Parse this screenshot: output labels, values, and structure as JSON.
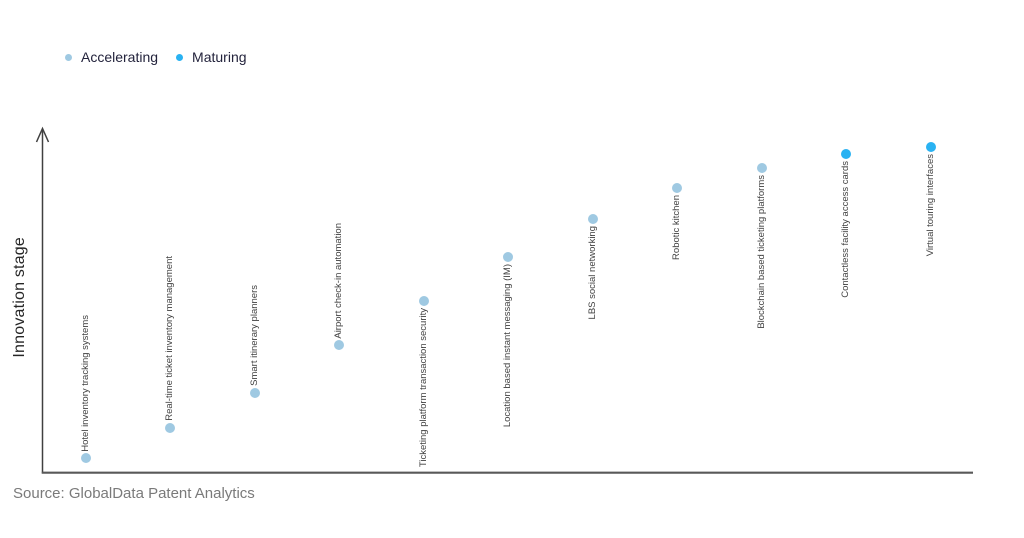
{
  "chart_data": {
    "type": "scatter",
    "title": "",
    "xlabel": "",
    "ylabel": "Innovation stage",
    "grid": false,
    "legend_position": "top-left",
    "y_axis": {
      "has_numeric_ticks": false,
      "arrow": true,
      "range_note": "qualitative innovation stage, low to high"
    },
    "legend": [
      {
        "name": "Accelerating",
        "color": "#9fc9e2"
      },
      {
        "name": "Maturing",
        "color": "#29b2f2"
      }
    ],
    "points": [
      {
        "label": "Hotel inventory tracking systems",
        "series": "Accelerating",
        "stage_score": 0.04
      },
      {
        "label": "Real-time ticket inventory management",
        "series": "Accelerating",
        "stage_score": 0.13
      },
      {
        "label": "Smart itinerary planners",
        "series": "Accelerating",
        "stage_score": 0.23
      },
      {
        "label": "Airport check-in automation",
        "series": "Accelerating",
        "stage_score": 0.37
      },
      {
        "label": "Ticketing platform transaction security",
        "series": "Accelerating",
        "stage_score": 0.5
      },
      {
        "label": "Location based instant messaging (IM)",
        "series": "Accelerating",
        "stage_score": 0.63
      },
      {
        "label": "LBS social networking",
        "series": "Accelerating",
        "stage_score": 0.74
      },
      {
        "label": "Robotic kitchen",
        "series": "Accelerating",
        "stage_score": 0.83
      },
      {
        "label": "Blockchain based ticketing platforms",
        "series": "Accelerating",
        "stage_score": 0.89
      },
      {
        "label": "Contactless facility access cards",
        "series": "Maturing",
        "stage_score": 0.93
      },
      {
        "label": "Virtual touring interfaces",
        "series": "Maturing",
        "stage_score": 0.95
      }
    ]
  },
  "source": "Source: GlobalData Patent Analytics"
}
